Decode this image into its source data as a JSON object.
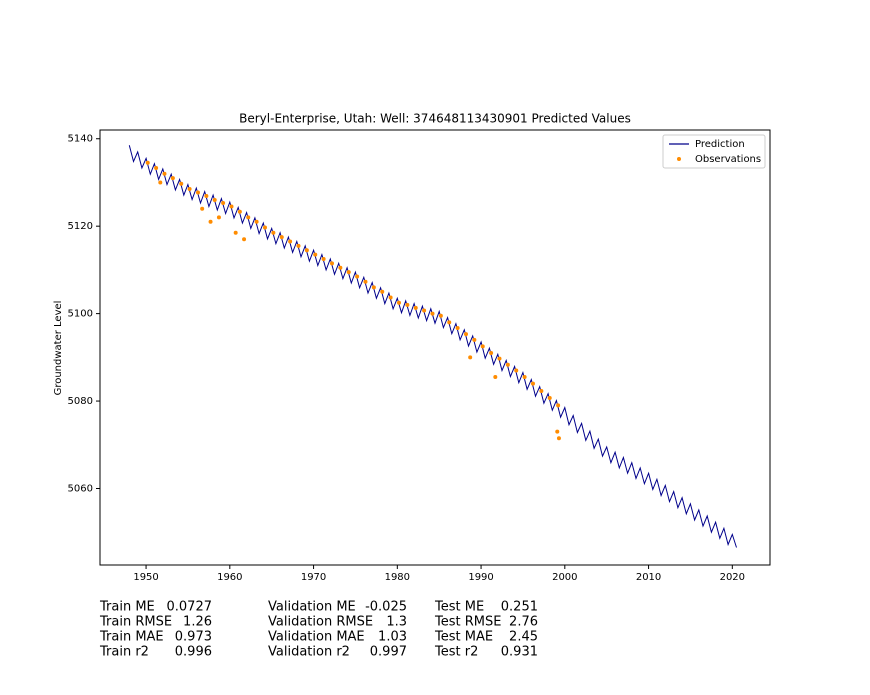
{
  "chart_data": {
    "type": "line",
    "title": "Beryl-Enterprise, Utah: Well: 374648113430901 Predicted Values",
    "ylabel": "Groundwater Level",
    "xlim": [
      1944.5,
      2024.5
    ],
    "xticks": [
      1950,
      1960,
      1970,
      1980,
      1990,
      2000,
      2010,
      2020
    ],
    "ylim": [
      5042.5,
      5142
    ],
    "yticks": [
      5060,
      5080,
      5100,
      5120,
      5140
    ],
    "legend": "upper right",
    "series": [
      {
        "name": "Prediction",
        "type": "line",
        "color": "#00008b",
        "x": [
          1948,
          1948.5,
          1949,
          1949.5,
          1950,
          1950.5,
          1951,
          1951.5,
          1952,
          1952.5,
          1953,
          1953.5,
          1954,
          1954.5,
          1955,
          1955.5,
          1956,
          1956.5,
          1957,
          1957.5,
          1958,
          1958.5,
          1959,
          1959.5,
          1960,
          1960.5,
          1961,
          1961.5,
          1962,
          1962.5,
          1963,
          1963.5,
          1964,
          1964.5,
          1965,
          1965.5,
          1966,
          1966.5,
          1967,
          1967.5,
          1968,
          1968.5,
          1969,
          1969.5,
          1970,
          1970.5,
          1971,
          1971.5,
          1972,
          1972.5,
          1973,
          1973.5,
          1974,
          1974.5,
          1975,
          1975.5,
          1976,
          1976.5,
          1977,
          1977.5,
          1978,
          1978.5,
          1979,
          1979.5,
          1980,
          1980.5,
          1981,
          1981.5,
          1982,
          1982.5,
          1983,
          1983.5,
          1984,
          1984.5,
          1985,
          1985.5,
          1986,
          1986.5,
          1987,
          1987.5,
          1988,
          1988.5,
          1989,
          1989.5,
          1990,
          1990.5,
          1991,
          1991.5,
          1992,
          1992.5,
          1993,
          1993.5,
          1994,
          1994.5,
          1995,
          1995.5,
          1996,
          1996.5,
          1997,
          1997.5,
          1998,
          1998.5,
          1999,
          1999.5,
          2000,
          2000.5,
          2001,
          2001.5,
          2002,
          2002.5,
          2003,
          2003.5,
          2004,
          2004.5,
          2005,
          2005.5,
          2006,
          2006.5,
          2007,
          2007.5,
          2008,
          2008.5,
          2009,
          2009.5,
          2010,
          2010.5,
          2011,
          2011.5,
          2012,
          2012.5,
          2013,
          2013.5,
          2014,
          2014.5,
          2015,
          2015.5,
          2016,
          2016.5,
          2017,
          2017.5,
          2018,
          2018.5,
          2019,
          2019.5,
          2020,
          2020.5
        ],
        "values": [
          5138.5,
          5134.8,
          5137,
          5133.3,
          5135.5,
          5131.9,
          5134.3,
          5130.7,
          5133.1,
          5129.5,
          5131.9,
          5128.3,
          5130.7,
          5127.1,
          5129.5,
          5126.1,
          5128.7,
          5125.3,
          5127.9,
          5124.5,
          5127.1,
          5123.7,
          5126.3,
          5122.9,
          5125.5,
          5121.9,
          5124.3,
          5120.7,
          5123.1,
          5119.5,
          5121.9,
          5118.3,
          5120.7,
          5117.1,
          5119.5,
          5116,
          5118.5,
          5115,
          5117.5,
          5114,
          5116.5,
          5113,
          5115.5,
          5112,
          5114.5,
          5111,
          5113.5,
          5110,
          5112.5,
          5109,
          5111.5,
          5108,
          5110.5,
          5107,
          5109.5,
          5105.9,
          5108.3,
          5104.7,
          5107.1,
          5103.5,
          5105.9,
          5102.3,
          5104.7,
          5101.1,
          5103.5,
          5100.2,
          5102.9,
          5099.6,
          5102.3,
          5099,
          5101.7,
          5098.4,
          5101.1,
          5097.8,
          5100.5,
          5096.8,
          5099.1,
          5095.4,
          5097.7,
          5094,
          5096.3,
          5092.6,
          5094.9,
          5091.2,
          5093.5,
          5089.8,
          5092.1,
          5088.4,
          5090.7,
          5087,
          5089.3,
          5085.6,
          5087.9,
          5084.2,
          5086.5,
          5082.7,
          5084.9,
          5081.1,
          5083.3,
          5079.5,
          5081.7,
          5077.9,
          5080.1,
          5076.3,
          5078.5,
          5074.6,
          5076.7,
          5072.8,
          5074.9,
          5071,
          5073.1,
          5069.2,
          5071.3,
          5067.4,
          5069.5,
          5065.9,
          5068.3,
          5064.7,
          5067.1,
          5063.5,
          5065.9,
          5062.3,
          5064.7,
          5061.1,
          5063.5,
          5059.8,
          5062.1,
          5058.4,
          5060.7,
          5057,
          5059.3,
          5055.6,
          5057.9,
          5054.2,
          5056.5,
          5052.8,
          5055.1,
          5051.4,
          5053.7,
          5050,
          5052.3,
          5048.6,
          5050.9,
          5047.2,
          5049.5,
          5046.5
        ]
      },
      {
        "name": "Observations",
        "type": "scatter",
        "color": "#ff8c00",
        "x": [
          1950.2,
          1951.2,
          1952.2,
          1953.2,
          1954.2,
          1955.2,
          1956.2,
          1957.2,
          1958.2,
          1959.2,
          1960.2,
          1961.2,
          1962.2,
          1963.2,
          1964.2,
          1965.2,
          1966.2,
          1967.2,
          1968.2,
          1969.2,
          1970.2,
          1971.2,
          1972.2,
          1973.2,
          1974.2,
          1975.2,
          1976.2,
          1977.2,
          1978.2,
          1979.2,
          1980.2,
          1981.2,
          1982.2,
          1983.2,
          1984.2,
          1985.2,
          1986.2,
          1987.2,
          1988.2,
          1989.2,
          1990.2,
          1991.2,
          1992.2,
          1993.2,
          1994.2,
          1995.2,
          1996.2,
          1997.2,
          1998.2,
          1999.2,
          1951.7,
          1956.7,
          1957.7,
          1958.7,
          1960.7,
          1961.7,
          1988.7,
          1991.7,
          1999.1,
          1999.3
        ],
        "values": [
          5134.5,
          5133.3,
          5132,
          5131,
          5129.7,
          5128.5,
          5127.7,
          5126.9,
          5126,
          5125.3,
          5124.5,
          5123.3,
          5122,
          5121,
          5119.7,
          5118.5,
          5117.5,
          5116.5,
          5115.5,
          5114.5,
          5113.5,
          5112.5,
          5111.5,
          5110.5,
          5109.5,
          5108.5,
          5107.3,
          5106,
          5105,
          5103.7,
          5102.5,
          5102,
          5101.3,
          5100.7,
          5100,
          5099.5,
          5098,
          5096.7,
          5095.3,
          5094,
          5092.5,
          5091,
          5089.7,
          5088.3,
          5087,
          5085.5,
          5084,
          5082.3,
          5080.7,
          5079,
          5130,
          5124,
          5121,
          5122,
          5118.5,
          5117,
          5090,
          5085.5,
          5073,
          5071.5
        ]
      }
    ],
    "metrics": [
      [
        {
          "label": "Train ME",
          "value": 0.0727
        },
        {
          "label": "Train RMSE",
          "value": 1.26
        },
        {
          "label": "Train MAE",
          "value": 0.973
        },
        {
          "label": "Train r2",
          "value": 0.996
        }
      ],
      [
        {
          "label": "Validation ME",
          "value": -0.025
        },
        {
          "label": "Validation RMSE",
          "value": 1.3
        },
        {
          "label": "Validation MAE",
          "value": 1.03
        },
        {
          "label": "Validation r2",
          "value": 0.997
        }
      ],
      [
        {
          "label": "Test ME",
          "value": 0.251
        },
        {
          "label": "Test RMSE",
          "value": 2.76
        },
        {
          "label": "Test MAE",
          "value": 2.45
        },
        {
          "label": "Test r2",
          "value": 0.931
        }
      ]
    ]
  }
}
